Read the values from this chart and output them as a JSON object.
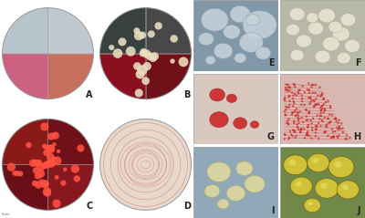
{
  "background": "#ffffff",
  "fig_w": 4.0,
  "fig_h": 2.39,
  "dpi": 100,
  "panels_left": {
    "A": {
      "row": 0,
      "col": 0,
      "q_colors": [
        "#b8c8d0",
        "#cc6688",
        "#c87060",
        "#b87858"
      ],
      "q_top_left": "#b8c8d0",
      "q_top_right": "#c0c8d0",
      "q_bot_left": "#cc6080",
      "q_bot_right": "#c87060",
      "label": "A"
    },
    "B": {
      "row": 0,
      "col": 1,
      "q_top_left": "#303838",
      "q_top_right": "#404848",
      "q_bot_left": "#8a1020",
      "q_bot_right": "#701018",
      "label": "B"
    },
    "C": {
      "row": 1,
      "col": 0,
      "q_top_left": "#8a1a18",
      "q_top_right": "#6a0e18",
      "q_bot_left": "#701010",
      "q_bot_right": "#8a1820",
      "label": "C"
    },
    "D": {
      "row": 1,
      "col": 1,
      "bg_color": "#e8d8cc",
      "label": "D"
    }
  },
  "panel_E": {
    "bg": "#8098a8",
    "label": "E"
  },
  "panel_F": {
    "bg": "#b8b8a8",
    "label": "F"
  },
  "panel_G": {
    "bg": "#d8c8be",
    "label": "G"
  },
  "panel_H": {
    "bg": "#d8b8b0",
    "label": "H"
  },
  "panel_I": {
    "bg": "#90a8b8",
    "label": "I"
  },
  "panel_J": {
    "bg": "#708848",
    "label": "J"
  },
  "label_fontsize": 7,
  "label_color": "#222222"
}
